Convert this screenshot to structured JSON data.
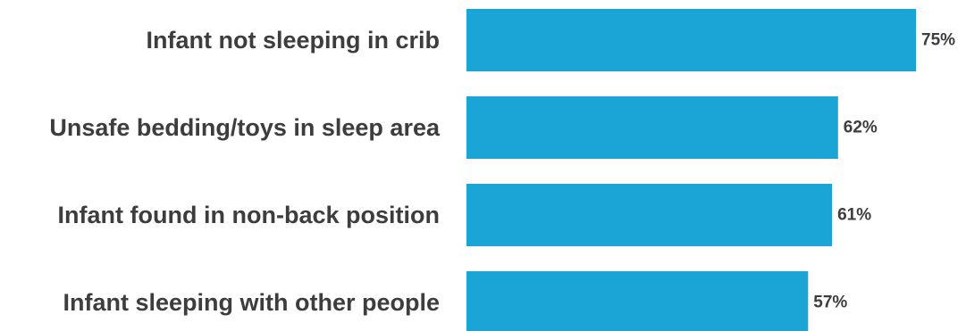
{
  "chart_data": {
    "type": "bar",
    "orientation": "horizontal",
    "categories": [
      "Infant not sleeping in crib",
      "Unsafe bedding/toys in sleep area",
      "Infant found in non-back position",
      "Infant sleeping with other people"
    ],
    "values": [
      75,
      62,
      61,
      57
    ],
    "value_labels": [
      "75%",
      "62%",
      "61%",
      "57%"
    ],
    "unit": "%",
    "title": "",
    "xlabel": "",
    "ylabel": "",
    "xlim": [
      0,
      75
    ],
    "grid": false,
    "legend": "none",
    "bar_color": "#1ba4d6",
    "text_color": "#3d3d3d"
  }
}
